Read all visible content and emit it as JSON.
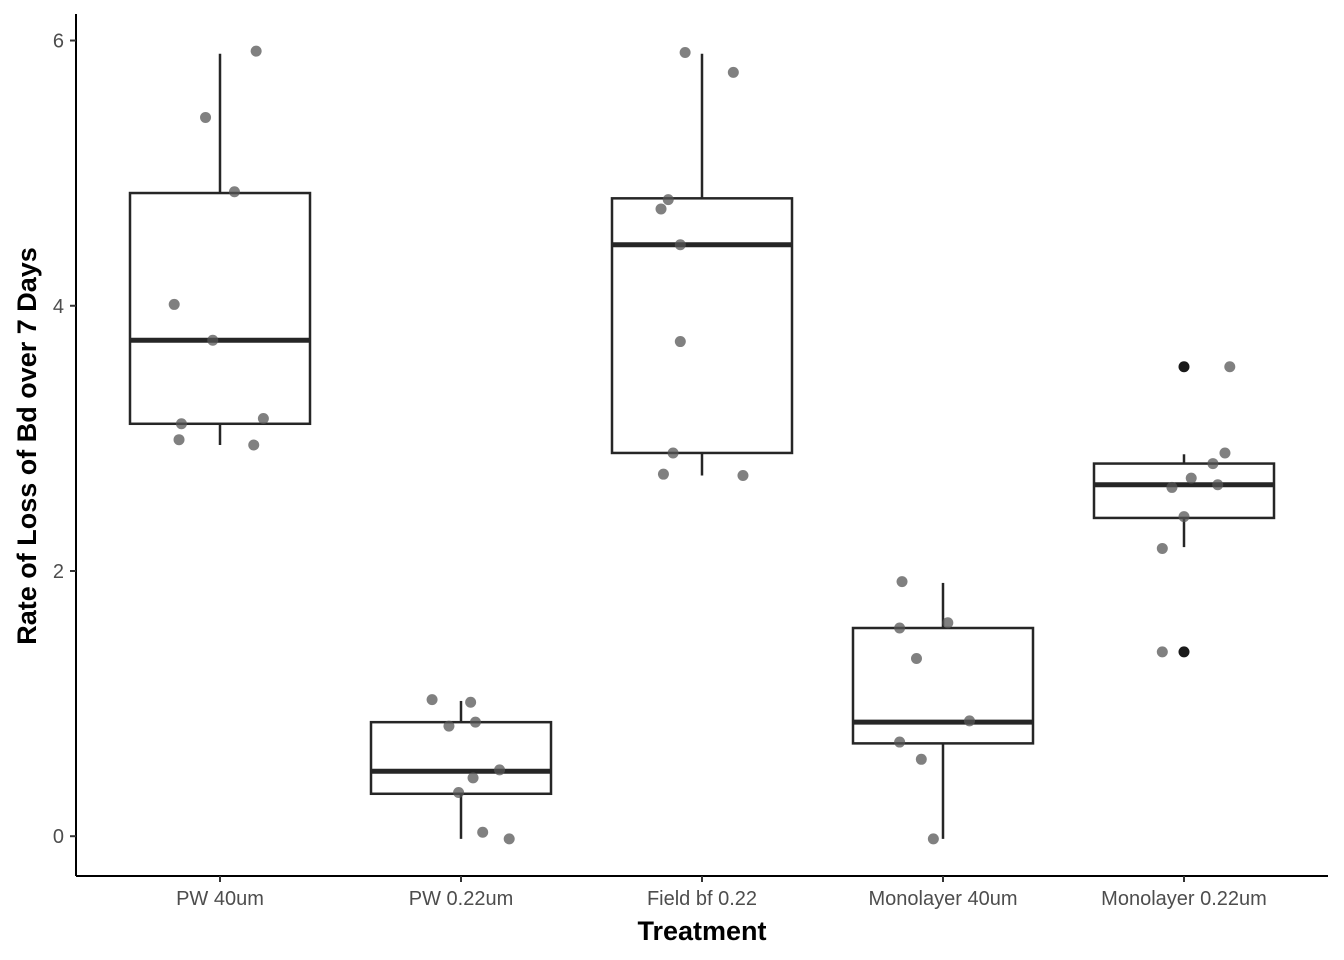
{
  "chart_data": {
    "type": "boxplot",
    "title": "",
    "xlabel": "Treatment",
    "ylabel": "Rate of Loss of Bd over 7 Days",
    "ylim": [
      -0.3,
      6.2
    ],
    "yticks": [
      0,
      2,
      4,
      6
    ],
    "grid": false,
    "legend": "none",
    "colors": {
      "box_line": "#262626",
      "point": "#555555",
      "outlier": "#1a1a1a",
      "axis": "#000000"
    },
    "categories": [
      "PW 40um",
      "PW 0.22um",
      "Field bf 0.22",
      "Monolayer 40um",
      "Monolayer 0.22um"
    ],
    "boxes": [
      {
        "category": "PW 40um",
        "q1": 3.11,
        "median": 3.74,
        "q3": 4.85,
        "whisker_low": 2.95,
        "whisker_high": 5.9,
        "outliers": []
      },
      {
        "category": "PW 0.22um",
        "q1": 0.32,
        "median": 0.49,
        "q3": 0.86,
        "whisker_low": -0.02,
        "whisker_high": 1.02,
        "outliers": []
      },
      {
        "category": "Field bf 0.22",
        "q1": 2.89,
        "median": 4.46,
        "q3": 4.81,
        "whisker_low": 2.72,
        "whisker_high": 5.9,
        "outliers": []
      },
      {
        "category": "Monolayer 40um",
        "q1": 0.7,
        "median": 0.86,
        "q3": 1.57,
        "whisker_low": -0.02,
        "whisker_high": 1.91,
        "outliers": []
      },
      {
        "category": "Monolayer 0.22um",
        "q1": 2.4,
        "median": 2.65,
        "q3": 2.81,
        "whisker_low": 2.18,
        "whisker_high": 2.88,
        "outliers": [
          3.54,
          1.39
        ]
      }
    ],
    "points": [
      {
        "category": "PW 40um",
        "jitter": 0.15,
        "y": 5.92
      },
      {
        "category": "PW 40um",
        "jitter": -0.06,
        "y": 5.42
      },
      {
        "category": "PW 40um",
        "jitter": 0.06,
        "y": 4.86
      },
      {
        "category": "PW 40um",
        "jitter": -0.19,
        "y": 4.01
      },
      {
        "category": "PW 40um",
        "jitter": -0.03,
        "y": 3.74
      },
      {
        "category": "PW 40um",
        "jitter": 0.18,
        "y": 3.15
      },
      {
        "category": "PW 40um",
        "jitter": -0.16,
        "y": 3.11
      },
      {
        "category": "PW 40um",
        "jitter": -0.17,
        "y": 2.99
      },
      {
        "category": "PW 40um",
        "jitter": 0.14,
        "y": 2.95
      },
      {
        "category": "PW 0.22um",
        "jitter": -0.12,
        "y": 1.03
      },
      {
        "category": "PW 0.22um",
        "jitter": 0.04,
        "y": 1.01
      },
      {
        "category": "PW 0.22um",
        "jitter": 0.06,
        "y": 0.86
      },
      {
        "category": "PW 0.22um",
        "jitter": -0.05,
        "y": 0.83
      },
      {
        "category": "PW 0.22um",
        "jitter": 0.16,
        "y": 0.5
      },
      {
        "category": "PW 0.22um",
        "jitter": 0.05,
        "y": 0.44
      },
      {
        "category": "PW 0.22um",
        "jitter": -0.01,
        "y": 0.33
      },
      {
        "category": "PW 0.22um",
        "jitter": 0.09,
        "y": 0.03
      },
      {
        "category": "PW 0.22um",
        "jitter": 0.2,
        "y": -0.02
      },
      {
        "category": "Field bf 0.22",
        "jitter": -0.07,
        "y": 5.91
      },
      {
        "category": "Field bf 0.22",
        "jitter": 0.13,
        "y": 5.76
      },
      {
        "category": "Field bf 0.22",
        "jitter": -0.14,
        "y": 4.8
      },
      {
        "category": "Field bf 0.22",
        "jitter": -0.17,
        "y": 4.73
      },
      {
        "category": "Field bf 0.22",
        "jitter": -0.09,
        "y": 4.46
      },
      {
        "category": "Field bf 0.22",
        "jitter": -0.09,
        "y": 3.73
      },
      {
        "category": "Field bf 0.22",
        "jitter": -0.12,
        "y": 2.89
      },
      {
        "category": "Field bf 0.22",
        "jitter": -0.16,
        "y": 2.73
      },
      {
        "category": "Field bf 0.22",
        "jitter": 0.17,
        "y": 2.72
      },
      {
        "category": "Monolayer 40um",
        "jitter": -0.17,
        "y": 1.92
      },
      {
        "category": "Monolayer 40um",
        "jitter": -0.18,
        "y": 1.57
      },
      {
        "category": "Monolayer 40um",
        "jitter": 0.02,
        "y": 1.61
      },
      {
        "category": "Monolayer 40um",
        "jitter": -0.11,
        "y": 1.34
      },
      {
        "category": "Monolayer 40um",
        "jitter": 0.11,
        "y": 0.87
      },
      {
        "category": "Monolayer 40um",
        "jitter": -0.18,
        "y": 0.71
      },
      {
        "category": "Monolayer 40um",
        "jitter": -0.09,
        "y": 0.58
      },
      {
        "category": "Monolayer 40um",
        "jitter": -0.04,
        "y": -0.02
      },
      {
        "category": "Monolayer 0.22um",
        "jitter": 0.19,
        "y": 3.54
      },
      {
        "category": "Monolayer 0.22um",
        "jitter": 0.17,
        "y": 2.89
      },
      {
        "category": "Monolayer 0.22um",
        "jitter": 0.12,
        "y": 2.81
      },
      {
        "category": "Monolayer 0.22um",
        "jitter": 0.03,
        "y": 2.7
      },
      {
        "category": "Monolayer 0.22um",
        "jitter": 0.14,
        "y": 2.65
      },
      {
        "category": "Monolayer 0.22um",
        "jitter": -0.05,
        "y": 2.63
      },
      {
        "category": "Monolayer 0.22um",
        "jitter": 0.0,
        "y": 2.41
      },
      {
        "category": "Monolayer 0.22um",
        "jitter": -0.09,
        "y": 2.17
      },
      {
        "category": "Monolayer 0.22um",
        "jitter": -0.09,
        "y": 1.39
      }
    ]
  }
}
